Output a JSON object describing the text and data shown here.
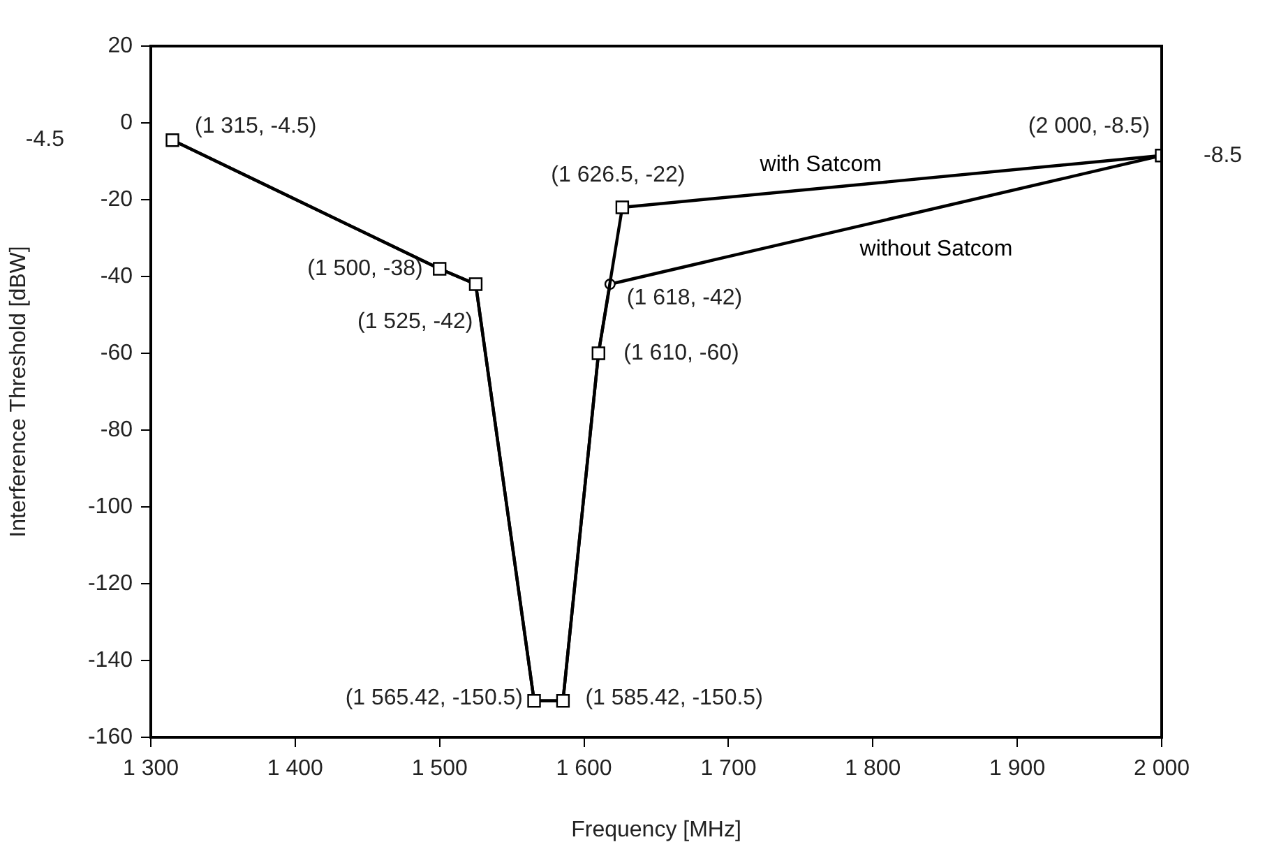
{
  "chart_data": {
    "type": "line",
    "xlabel": "Frequency [MHz]",
    "ylabel": "Interference Threshold [dBW]",
    "xlim": [
      1300,
      2000
    ],
    "xticks": [
      {
        "value": 1300,
        "label": "1 300"
      },
      {
        "value": 1400,
        "label": "1 400"
      },
      {
        "value": 1500,
        "label": "1 500"
      },
      {
        "value": 1600,
        "label": "1 600"
      },
      {
        "value": 1700,
        "label": "1 700"
      },
      {
        "value": 1800,
        "label": "1 800"
      },
      {
        "value": 1900,
        "label": "1 900"
      },
      {
        "value": 2000,
        "label": "2 000"
      }
    ],
    "ylim": [
      -160,
      20
    ],
    "yticks": [
      -160,
      -140,
      -120,
      -100,
      -80,
      -60,
      -40,
      -20,
      0,
      20
    ],
    "legend": false,
    "line_style": "solid",
    "series": [
      {
        "name": "with Satcom",
        "color": "#000000",
        "marker": "square",
        "x": [
          1315,
          1500,
          1525,
          1565.42,
          1585.42,
          1610,
          1626.5,
          2000
        ],
        "values": [
          -4.5,
          -38,
          -42,
          -150.5,
          -150.5,
          -60,
          -22,
          -8.5
        ]
      },
      {
        "name": "without Satcom",
        "color": "#000000",
        "marker": "circle",
        "x": [
          1315,
          1500,
          1525,
          1565.42,
          1585.42,
          1610,
          1618,
          2000
        ],
        "values": [
          -4.5,
          -38,
          -42,
          -150.5,
          -150.5,
          -60,
          -42,
          -8.5
        ]
      }
    ],
    "annotations": [
      {
        "text": "(1 315, -4.5)",
        "x": 1315,
        "y": -4.5
      },
      {
        "text": "(1 500, -38)",
        "x": 1500,
        "y": -38
      },
      {
        "text": "(1 525, -42)",
        "x": 1525,
        "y": -42
      },
      {
        "text": "(1 626.5, -22)",
        "x": 1626.5,
        "y": -22
      },
      {
        "text": "(1 618, -42)",
        "x": 1618,
        "y": -42
      },
      {
        "text": "(1 610, -60)",
        "x": 1610,
        "y": -60
      },
      {
        "text": "(1 565.42, -150.5)",
        "x": 1565.42,
        "y": -150.5
      },
      {
        "text": "(1 585.42, -150.5)",
        "x": 1585.42,
        "y": -150.5
      },
      {
        "text": "(2 000, -8.5)",
        "x": 2000,
        "y": -8.5
      },
      "-4.5",
      {
        "text": "-8.5",
        "x": 2000,
        "y": -8.5
      }
    ]
  }
}
